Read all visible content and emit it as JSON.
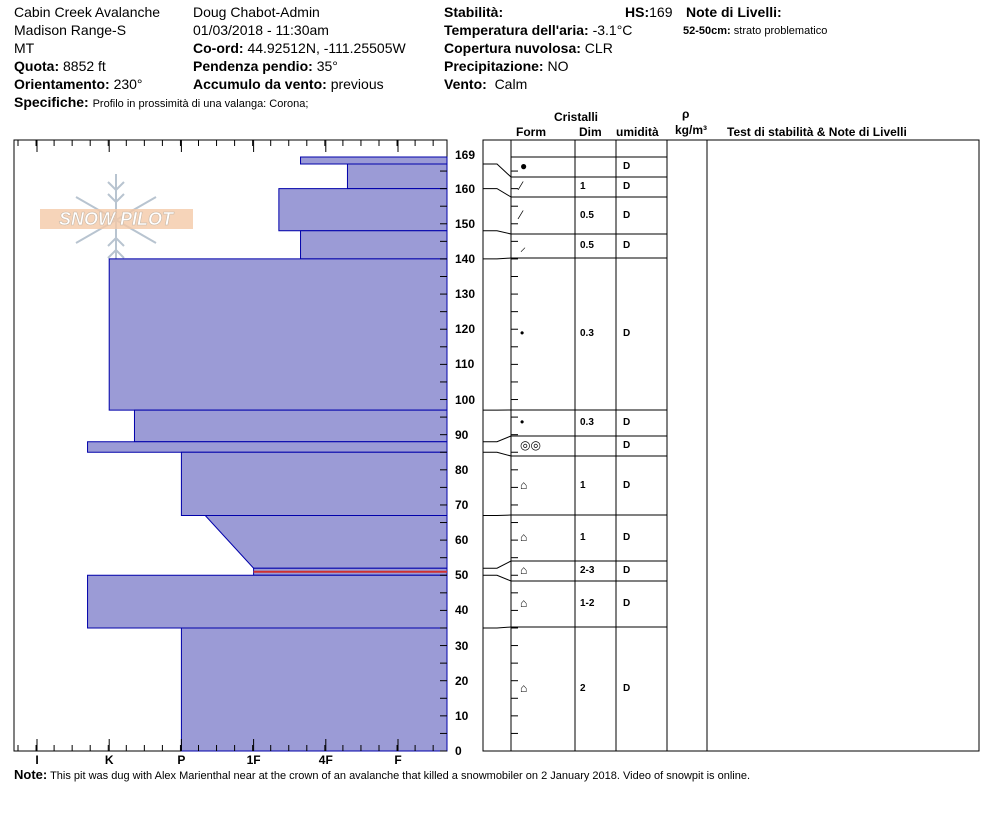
{
  "header": {
    "location": "Cabin Creek Avalanche",
    "range": "Madison Range-S",
    "state": "MT",
    "elevation_label": "Quota:",
    "elevation": "8852 ft",
    "aspect_label": "Orientamento:",
    "aspect": "230°",
    "observer": "Doug Chabot-Admin",
    "datetime": "01/03/2018 - 11:30am",
    "coord_label": "Co-ord:",
    "coord": "44.92512N, -111.25505W",
    "slope_label": "Pendenza pendio:",
    "slope": "35°",
    "wind_loading_label": "Accumulo da vento:",
    "wind_loading": "previous",
    "specifics_label": "Specifiche:",
    "specifics": "Profilo in prossimità di una valanga: Corona;",
    "stability_label": "Stabilità:",
    "stability": "",
    "hs_label": "HS:",
    "hs": "169",
    "air_temp_label": "Temperatura dell'aria:",
    "air_temp": "-3.1°C",
    "sky_label": "Copertura nuvolosa:",
    "sky": "CLR",
    "precip_label": "Precipitazione:",
    "precip": "NO",
    "wind_label": "Vento:",
    "wind": "Calm",
    "layer_notes_label": "Note di Livelli:",
    "layer_note_range": "52-50cm:",
    "layer_note_text": "strato problematico"
  },
  "table_headers": {
    "crystals": "Cristalli",
    "form": "Form",
    "size": "Dim",
    "moisture": "umidità",
    "rho": "ρ",
    "density_unit": "kg/m³",
    "tests": "Test di stabilità & Note di Livelli"
  },
  "logo_text": "SNOW PILOT",
  "note_label": "Note:",
  "note": "This pit was dug with Alex Marienthal near at the crown of an avalanche that killed a snowmobiler on 2 January 2018. Video of snowpit is online.",
  "colors": {
    "layer_fill": "#9b9bd6",
    "layer_edge": "#0000aa",
    "weak_layer": "#d03030"
  },
  "chart_data": {
    "type": "snow-profile",
    "depth_range": [
      0,
      169
    ],
    "depth_ticks": [
      "169",
      "160",
      "150",
      "140",
      "130",
      "120",
      "110",
      "100",
      "90",
      "80",
      "70",
      "60",
      "50",
      "40",
      "30",
      "20",
      "10",
      "0"
    ],
    "hardness_labels": [
      "I",
      "K",
      "P",
      "1F",
      "4F",
      "F"
    ],
    "hardness_note": "hardness index: I=1,K=2,P=3,1F=4,4F=5,F=6 (bars extend right toward soft)",
    "layers": [
      {
        "top": 169,
        "bottom": 167,
        "hardness": 4.65
      },
      {
        "top": 167,
        "bottom": 160,
        "hardness": 5.3
      },
      {
        "top": 160,
        "bottom": 148,
        "hardness": 4.35
      },
      {
        "top": 148,
        "bottom": 140,
        "hardness": 4.65
      },
      {
        "top": 140,
        "bottom": 97,
        "hardness": 2.0
      },
      {
        "top": 97,
        "bottom": 88,
        "hardness": 2.35
      },
      {
        "top": 88,
        "bottom": 85,
        "hardness": 1.7
      },
      {
        "top": 85,
        "bottom": 67,
        "hardness": 3.0
      },
      {
        "top": 67,
        "bottom": 52,
        "hardness": 3.33,
        "hardness_bottom": 4.0
      },
      {
        "top": 52,
        "bottom": 50,
        "hardness": 4.0,
        "weak": true
      },
      {
        "top": 50,
        "bottom": 35,
        "hardness": 1.7
      },
      {
        "top": 35,
        "bottom": 0,
        "hardness": 3.0
      }
    ],
    "rows": [
      {
        "form": "●",
        "size": "",
        "moisture": "D"
      },
      {
        "form": "⁄",
        "size": "1",
        "moisture": "D"
      },
      {
        "form": "⁄",
        "size": "0.5",
        "moisture": "D"
      },
      {
        "form": "⸝",
        "size": "0.5",
        "moisture": "D"
      },
      {
        "form": "•",
        "size": "0.3",
        "moisture": "D"
      },
      {
        "form": "•",
        "size": "0.3",
        "moisture": "D"
      },
      {
        "form": "◎◎",
        "size": "",
        "moisture": "D"
      },
      {
        "form": "⌂",
        "size": "1",
        "moisture": "D"
      },
      {
        "form": "⌂",
        "size": "1",
        "moisture": "D"
      },
      {
        "form": "⌂",
        "size": "2-3",
        "moisture": "D"
      },
      {
        "form": "⌂",
        "size": "1-2",
        "moisture": "D"
      },
      {
        "form": "⌂",
        "size": "2",
        "moisture": "D"
      }
    ]
  }
}
